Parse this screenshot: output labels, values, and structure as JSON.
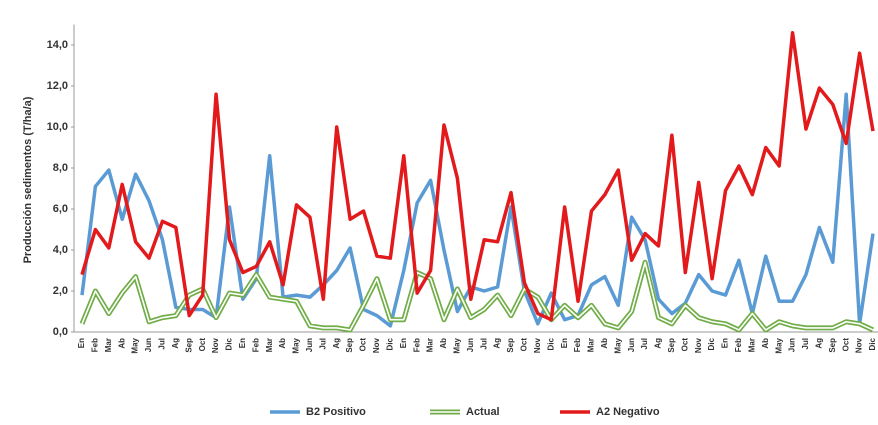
{
  "chart_data": {
    "type": "line",
    "y_label": "Producción sedimentos (T/ha/a)",
    "categories": [
      "En",
      "Feb",
      "Mar",
      "Ab",
      "May",
      "Jun",
      "Jul",
      "Ag",
      "Sep",
      "Oct",
      "Nov",
      "Dic",
      "En",
      "Feb",
      "Mar",
      "Ab",
      "May",
      "Jun",
      "Jul",
      "Ag",
      "Sep",
      "Oct",
      "Nov",
      "Dic",
      "En",
      "Feb",
      "Mar",
      "Ab",
      "May",
      "Jun",
      "Jul",
      "Ag",
      "Sep",
      "Oct",
      "Nov",
      "Dic",
      "En",
      "Feb",
      "Mar",
      "Ab",
      "May",
      "Jun",
      "Jul",
      "Ag",
      "Sep",
      "Oct",
      "Nov",
      "Dic",
      "En",
      "Feb",
      "Mar",
      "Ab",
      "May",
      "Jun",
      "Jul",
      "Ag",
      "Sep",
      "Oct",
      "Nov",
      "Dic"
    ],
    "series": [
      {
        "name": "B2 Positivo",
        "color": "#5b9bd5",
        "style": "solid",
        "values": [
          1.8,
          7.1,
          7.9,
          5.5,
          7.7,
          6.4,
          4.5,
          1.2,
          1.1,
          1.1,
          0.7,
          6.1,
          1.6,
          2.6,
          8.6,
          1.7,
          1.8,
          1.7,
          2.3,
          3.0,
          4.1,
          1.1,
          0.8,
          0.3,
          3.0,
          6.3,
          7.4,
          4.0,
          1.0,
          2.2,
          2.0,
          2.2,
          6.1,
          2.0,
          0.4,
          1.9,
          0.6,
          0.8,
          2.3,
          2.7,
          1.3,
          5.6,
          4.5,
          1.6,
          0.9,
          1.4,
          2.8,
          2.0,
          1.8,
          3.5,
          0.9,
          3.7,
          1.5,
          1.5,
          2.8,
          5.1,
          3.4,
          11.6,
          0.4,
          4.8
        ]
      },
      {
        "name": "Actual",
        "color": "#70ad47",
        "style": "double",
        "values": [
          0.4,
          2.0,
          0.9,
          1.9,
          2.7,
          0.5,
          0.7,
          0.8,
          1.8,
          2.1,
          0.7,
          1.9,
          1.8,
          2.8,
          1.7,
          1.6,
          1.5,
          0.3,
          0.2,
          0.2,
          0.1,
          1.3,
          2.6,
          0.6,
          0.6,
          2.9,
          2.6,
          0.6,
          2.1,
          0.7,
          1.1,
          1.8,
          0.8,
          2.1,
          1.7,
          0.6,
          1.3,
          0.7,
          1.3,
          0.4,
          0.2,
          1.0,
          3.4,
          0.7,
          0.4,
          1.3,
          0.7,
          0.5,
          0.4,
          0.1,
          0.9,
          0.1,
          0.5,
          0.3,
          0.2,
          0.2,
          0.2,
          0.5,
          0.4,
          0.1
        ]
      },
      {
        "name": "A2 Negativo",
        "color": "#e31a1c",
        "style": "solid",
        "values": [
          2.8,
          5.0,
          4.1,
          7.2,
          4.4,
          3.6,
          5.4,
          5.1,
          0.8,
          1.8,
          11.6,
          4.5,
          2.9,
          3.2,
          4.4,
          2.3,
          6.2,
          5.6,
          1.6,
          10.0,
          5.5,
          5.9,
          3.7,
          3.6,
          8.6,
          1.9,
          3.0,
          10.1,
          7.5,
          1.6,
          4.5,
          4.4,
          6.8,
          2.4,
          0.9,
          0.6,
          6.1,
          1.5,
          5.9,
          6.7,
          7.9,
          3.5,
          4.8,
          4.2,
          9.6,
          2.9,
          7.3,
          2.6,
          6.9,
          8.1,
          6.7,
          9.0,
          8.1,
          14.6,
          9.9,
          11.9,
          11.1,
          9.2,
          13.6,
          9.8
        ]
      }
    ],
    "ylim": [
      0,
      15
    ],
    "yticks": [
      {
        "value": 0,
        "label": "0,0"
      },
      {
        "value": 2,
        "label": "2,0"
      },
      {
        "value": 4,
        "label": "4,0"
      },
      {
        "value": 6,
        "label": "6,0"
      },
      {
        "value": 8,
        "label": "8,0"
      },
      {
        "value": 10,
        "label": "10,0"
      },
      {
        "value": 12,
        "label": "12,0"
      },
      {
        "value": 14,
        "label": "14,0"
      }
    ],
    "grid": false,
    "legend": "bottom"
  }
}
